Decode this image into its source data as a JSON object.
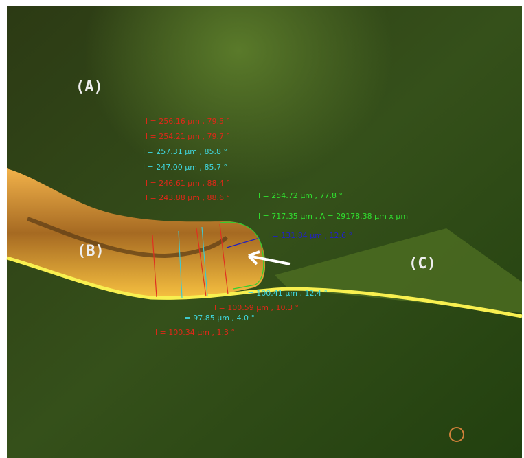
{
  "panel_labels": [
    "(A)",
    "(B)",
    "(C)"
  ],
  "measurements": [
    "l = 256.16 µm ,  79.5 °",
    "l = 254.21 µm ,  79.7 °",
    "l = 257.31 µm ,  85.8 °",
    "l = 247.00 µm ,  85.7 °",
    "l = 246.61 µm ,  88.4 °",
    "l = 243.88 µm ,  88.6 °",
    "l = 254.72 µm ,  77.8 °",
    "l = 717.35 µm ,  A = 29178.38 µm x µm",
    "l = 131.84 µm ,  12.6 °",
    "l = 100.41 µm ,  12.4 °",
    "l = 100.59 µm ,  10.3 °",
    "l = 97.85 µm ,  4.0 °",
    "l = 100.34 µm ,  1.3 °"
  ]
}
